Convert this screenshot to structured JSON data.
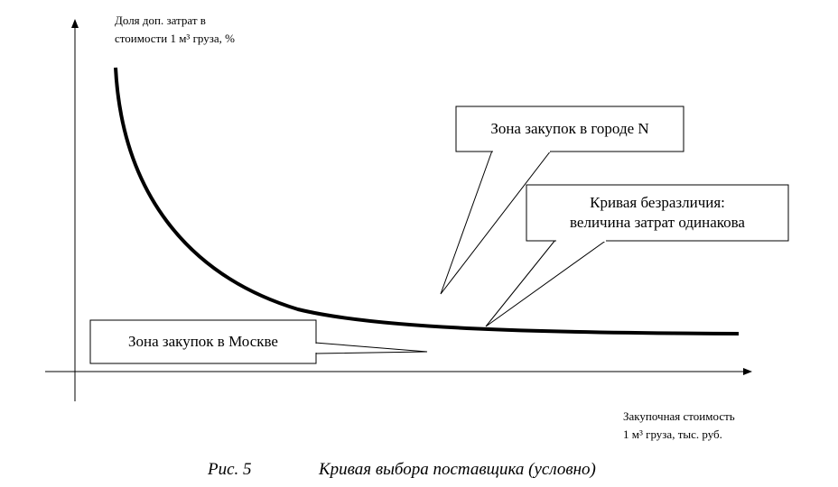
{
  "axes": {
    "y_label": [
      "Доля доп. затрат в",
      "стоимости 1 м³ груза, %"
    ],
    "x_label": [
      "Закупочная стоимость",
      "1 м³ груза, тыс. руб."
    ]
  },
  "callouts": [
    {
      "lines": [
        "Зона закупок в городе N"
      ]
    },
    {
      "lines": [
        "Кривая безразличия:",
        "величина затрат одинакова"
      ]
    },
    {
      "lines": [
        "Зона закупок в Москве"
      ]
    }
  ],
  "caption": {
    "number": "Рис. 5",
    "title": "Кривая выбора поставщика (условно)"
  }
}
